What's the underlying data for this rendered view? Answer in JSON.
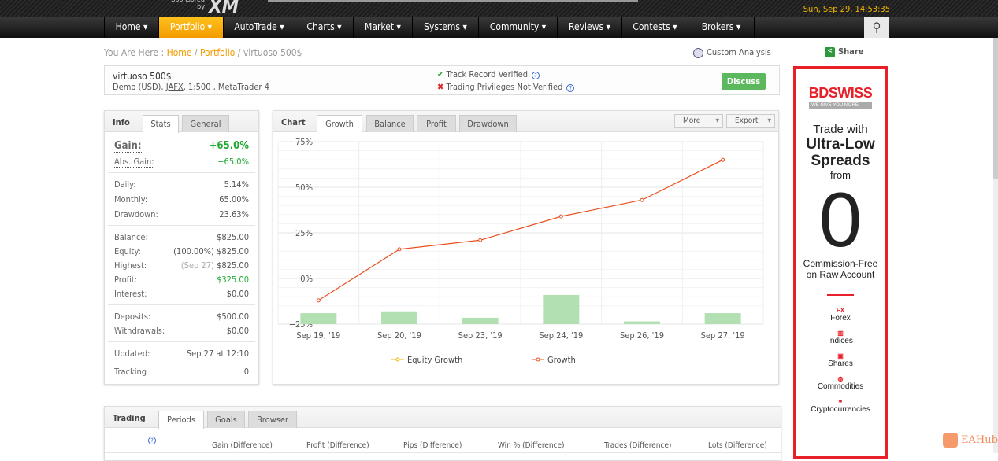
{
  "header": {
    "sponsored": "Sponsored by",
    "sponsor_logo": "XM",
    "datetime": "Sun, Sep 29, 14:53:35"
  },
  "nav": [
    {
      "label": "Home ▾"
    },
    {
      "label": "Portfolio ▾"
    },
    {
      "label": "AutoTrade ▾"
    },
    {
      "label": "Charts ▾"
    },
    {
      "label": "Market ▾"
    },
    {
      "label": "Systems ▾"
    },
    {
      "label": "Community ▾"
    },
    {
      "label": "Reviews ▾"
    },
    {
      "label": "Contests ▾"
    },
    {
      "label": "Brokers ▾"
    }
  ],
  "breadcrumb": {
    "prefix": "You Are Here : ",
    "home": "Home",
    "sep": " / ",
    "portfolio": "Portfolio",
    "current": "virtuoso 500$"
  },
  "actions": {
    "custom_analysis": "Custom Analysis",
    "share": "Share"
  },
  "account": {
    "name": "virtuoso 500$",
    "type": "Demo (USD), ",
    "broker": "JAFX",
    "details": ", 1:500 , MetaTrader 4",
    "track": "Track Record Verified",
    "privileges": "Trading Privileges Not Verified",
    "discuss": "Discuss"
  },
  "info": {
    "title": "Info",
    "tabs": [
      "Stats",
      "General"
    ],
    "gain_label": "Gain:",
    "gain": "+65.0%",
    "abs_label": "Abs. Gain:",
    "abs": "+65.0%",
    "daily_label": "Daily:",
    "daily": "5.14%",
    "monthly_label": "Monthly:",
    "monthly": "65.00%",
    "dd_label": "Drawdown:",
    "dd": "23.63%",
    "balance_label": "Balance:",
    "balance": "$825.00",
    "equity_label": "Equity:",
    "equity_pct": "(100.00%)",
    "equity": "$825.00",
    "highest_label": "Highest:",
    "highest_date": "(Sep 27)",
    "highest": "$825.00",
    "profit_label": "Profit:",
    "profit": "$325.00",
    "interest_label": "Interest:",
    "interest": "$0.00",
    "deposits_label": "Deposits:",
    "deposits": "$500.00",
    "withdrawals_label": "Withdrawals:",
    "withdrawals": "$0.00",
    "updated_label": "Updated:",
    "updated": "Sep 27 at 12:10",
    "tracking_label": "Tracking",
    "tracking": "0"
  },
  "chart": {
    "title": "Chart",
    "tabs": [
      "Growth",
      "Balance",
      "Profit",
      "Drawdown"
    ],
    "more": "More",
    "export": "Export"
  },
  "chart_data": {
    "type": "line",
    "categories": [
      "Sep 19, '19",
      "Sep 20, '19",
      "Sep 23, '19",
      "Sep 24, '19",
      "Sep 26, '19",
      "Sep 27, '19"
    ],
    "yticks": [
      "75%",
      "50%",
      "25%",
      "0%",
      "−25%"
    ],
    "ylim": [
      -25,
      75
    ],
    "series": [
      {
        "name": "Equity Growth",
        "type": "bar",
        "color": "#b3e0b3",
        "values": [
          -19,
          -18,
          -21.5,
          -9,
          -23.5,
          -19
        ]
      },
      {
        "name": "Growth",
        "type": "line",
        "color": "#e8501e",
        "values": [
          -12,
          16,
          21,
          34,
          43,
          65
        ]
      }
    ],
    "legend": [
      "Equity Growth",
      "Growth"
    ],
    "legend_colors": [
      "#f0b400",
      "#e8501e"
    ]
  },
  "trading": {
    "title": "Trading",
    "tabs": [
      "Periods",
      "Goals",
      "Browser"
    ],
    "columns": [
      "Gain (Difference)",
      "Profit (Difference)",
      "Pips (Difference)",
      "Win % (Difference)",
      "Trades (Difference)",
      "Lots (Difference)"
    ]
  },
  "ad": {
    "brand": "BDSWISS",
    "tagline": "WE GIVE YOU MORE",
    "l1": "Trade with",
    "l2": "Ultra-Low",
    "l3": "Spreads",
    "l4": "from",
    "big": "0",
    "l5": "Commission-Free",
    "l6": "on Raw Account",
    "items": [
      {
        "icon": "FX",
        "label": "Forex"
      },
      {
        "icon": "▥",
        "label": "Indices"
      },
      {
        "icon": "▣",
        "label": "Shares"
      },
      {
        "icon": "◍",
        "label": "Commodities"
      },
      {
        "icon": "⚭",
        "label": "Cryptocurrencies"
      }
    ]
  },
  "watermark": "EAHub"
}
